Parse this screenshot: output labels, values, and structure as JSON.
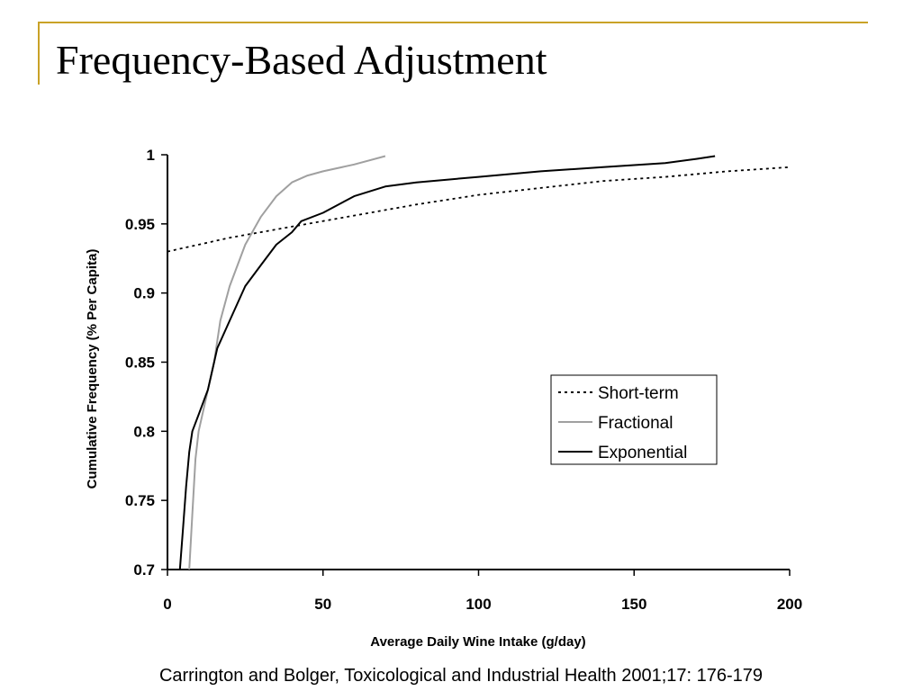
{
  "slide": {
    "title": "Frequency-Based Adjustment",
    "citation": "Carrington and Bolger, Toxicological and Industrial Health 2001;17: 176-179"
  },
  "chart_data": {
    "type": "line",
    "title": "",
    "xlabel": "Average Daily Wine Intake (g/day)",
    "ylabel": "Cumulative Frequency (% Per Capita)",
    "xlim": [
      0,
      200
    ],
    "ylim": [
      0.7,
      1
    ],
    "x_ticks": [
      "0",
      "50",
      "100",
      "150",
      "200"
    ],
    "y_ticks": [
      "0.7",
      "0.75",
      "0.8",
      "0.85",
      "0.9",
      "0.95",
      "1"
    ],
    "grid": false,
    "legend_position": "right",
    "series": [
      {
        "name": "Short-term",
        "style": "dotted",
        "color": "#000000",
        "x": [
          0,
          20,
          40,
          60,
          80,
          100,
          120,
          140,
          160,
          180,
          200
        ],
        "y": [
          0.93,
          0.94,
          0.948,
          0.956,
          0.964,
          0.971,
          0.976,
          0.981,
          0.984,
          0.988,
          0.991
        ]
      },
      {
        "name": "Fractional",
        "style": "solid",
        "color": "#a0a0a0",
        "x": [
          7,
          8,
          9,
          10,
          12,
          15,
          17,
          20,
          25,
          30,
          35,
          40,
          45,
          50,
          60,
          70
        ],
        "y": [
          0.7,
          0.74,
          0.78,
          0.8,
          0.82,
          0.85,
          0.88,
          0.905,
          0.935,
          0.955,
          0.97,
          0.98,
          0.985,
          0.988,
          0.993,
          0.999
        ]
      },
      {
        "name": "Exponential",
        "style": "solid",
        "color": "#000000",
        "x": [
          4,
          5,
          6,
          7,
          8,
          10,
          13,
          16,
          20,
          25,
          30,
          35,
          40,
          43,
          50,
          60,
          70,
          80,
          100,
          120,
          140,
          160,
          170,
          176
        ],
        "y": [
          0.7,
          0.73,
          0.76,
          0.785,
          0.8,
          0.812,
          0.83,
          0.86,
          0.88,
          0.905,
          0.92,
          0.935,
          0.944,
          0.952,
          0.958,
          0.97,
          0.977,
          0.98,
          0.984,
          0.988,
          0.991,
          0.994,
          0.997,
          0.999
        ]
      }
    ]
  }
}
